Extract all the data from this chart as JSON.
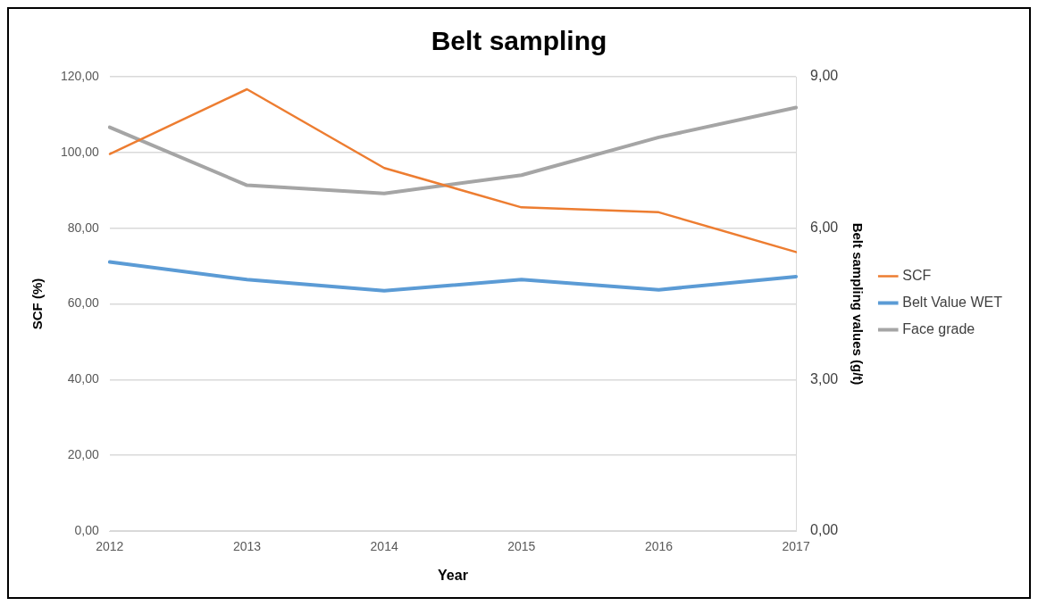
{
  "chart_data": {
    "type": "line",
    "title": "Belt sampling",
    "xlabel": "Year",
    "ylabel": "SCF (%)",
    "y2label": "Belt sampling values (g/t)",
    "categories": [
      "2012",
      "2013",
      "2014",
      "2015",
      "2016",
      "2017"
    ],
    "series": [
      {
        "name": "SCF",
        "color": "#ed7d31",
        "values": [
          99.6,
          116.7,
          95.9,
          85.5,
          84.2,
          73.7
        ]
      },
      {
        "name": "Belt Value WET",
        "color": "#5b9bd5",
        "axis": "y2",
        "values": [
          5.33,
          4.98,
          4.76,
          4.98,
          4.78,
          5.04
        ]
      },
      {
        "name": "Face grade",
        "color": "#a5a5a5",
        "axis": "y2",
        "values": [
          8.0,
          6.85,
          6.69,
          7.05,
          7.8,
          8.39
        ]
      }
    ],
    "ylim": [
      0,
      120
    ],
    "yticks": [
      {
        "value": 0,
        "label": "0,00"
      },
      {
        "value": 20,
        "label": "20,00"
      },
      {
        "value": 40,
        "label": "40,00"
      },
      {
        "value": 60,
        "label": "60,00"
      },
      {
        "value": 80,
        "label": "80,00"
      },
      {
        "value": 100,
        "label": "100,00"
      },
      {
        "value": 120,
        "label": "120,00"
      }
    ],
    "y2lim": [
      0,
      9
    ],
    "y2ticks": [
      {
        "value": 0,
        "label": "0,00"
      },
      {
        "value": 3,
        "label": "3,00"
      },
      {
        "value": 6,
        "label": "6,00"
      },
      {
        "value": 9,
        "label": "9,00"
      }
    ],
    "grid": "y",
    "legend": "right",
    "marker": "none",
    "line_style": "solid"
  }
}
